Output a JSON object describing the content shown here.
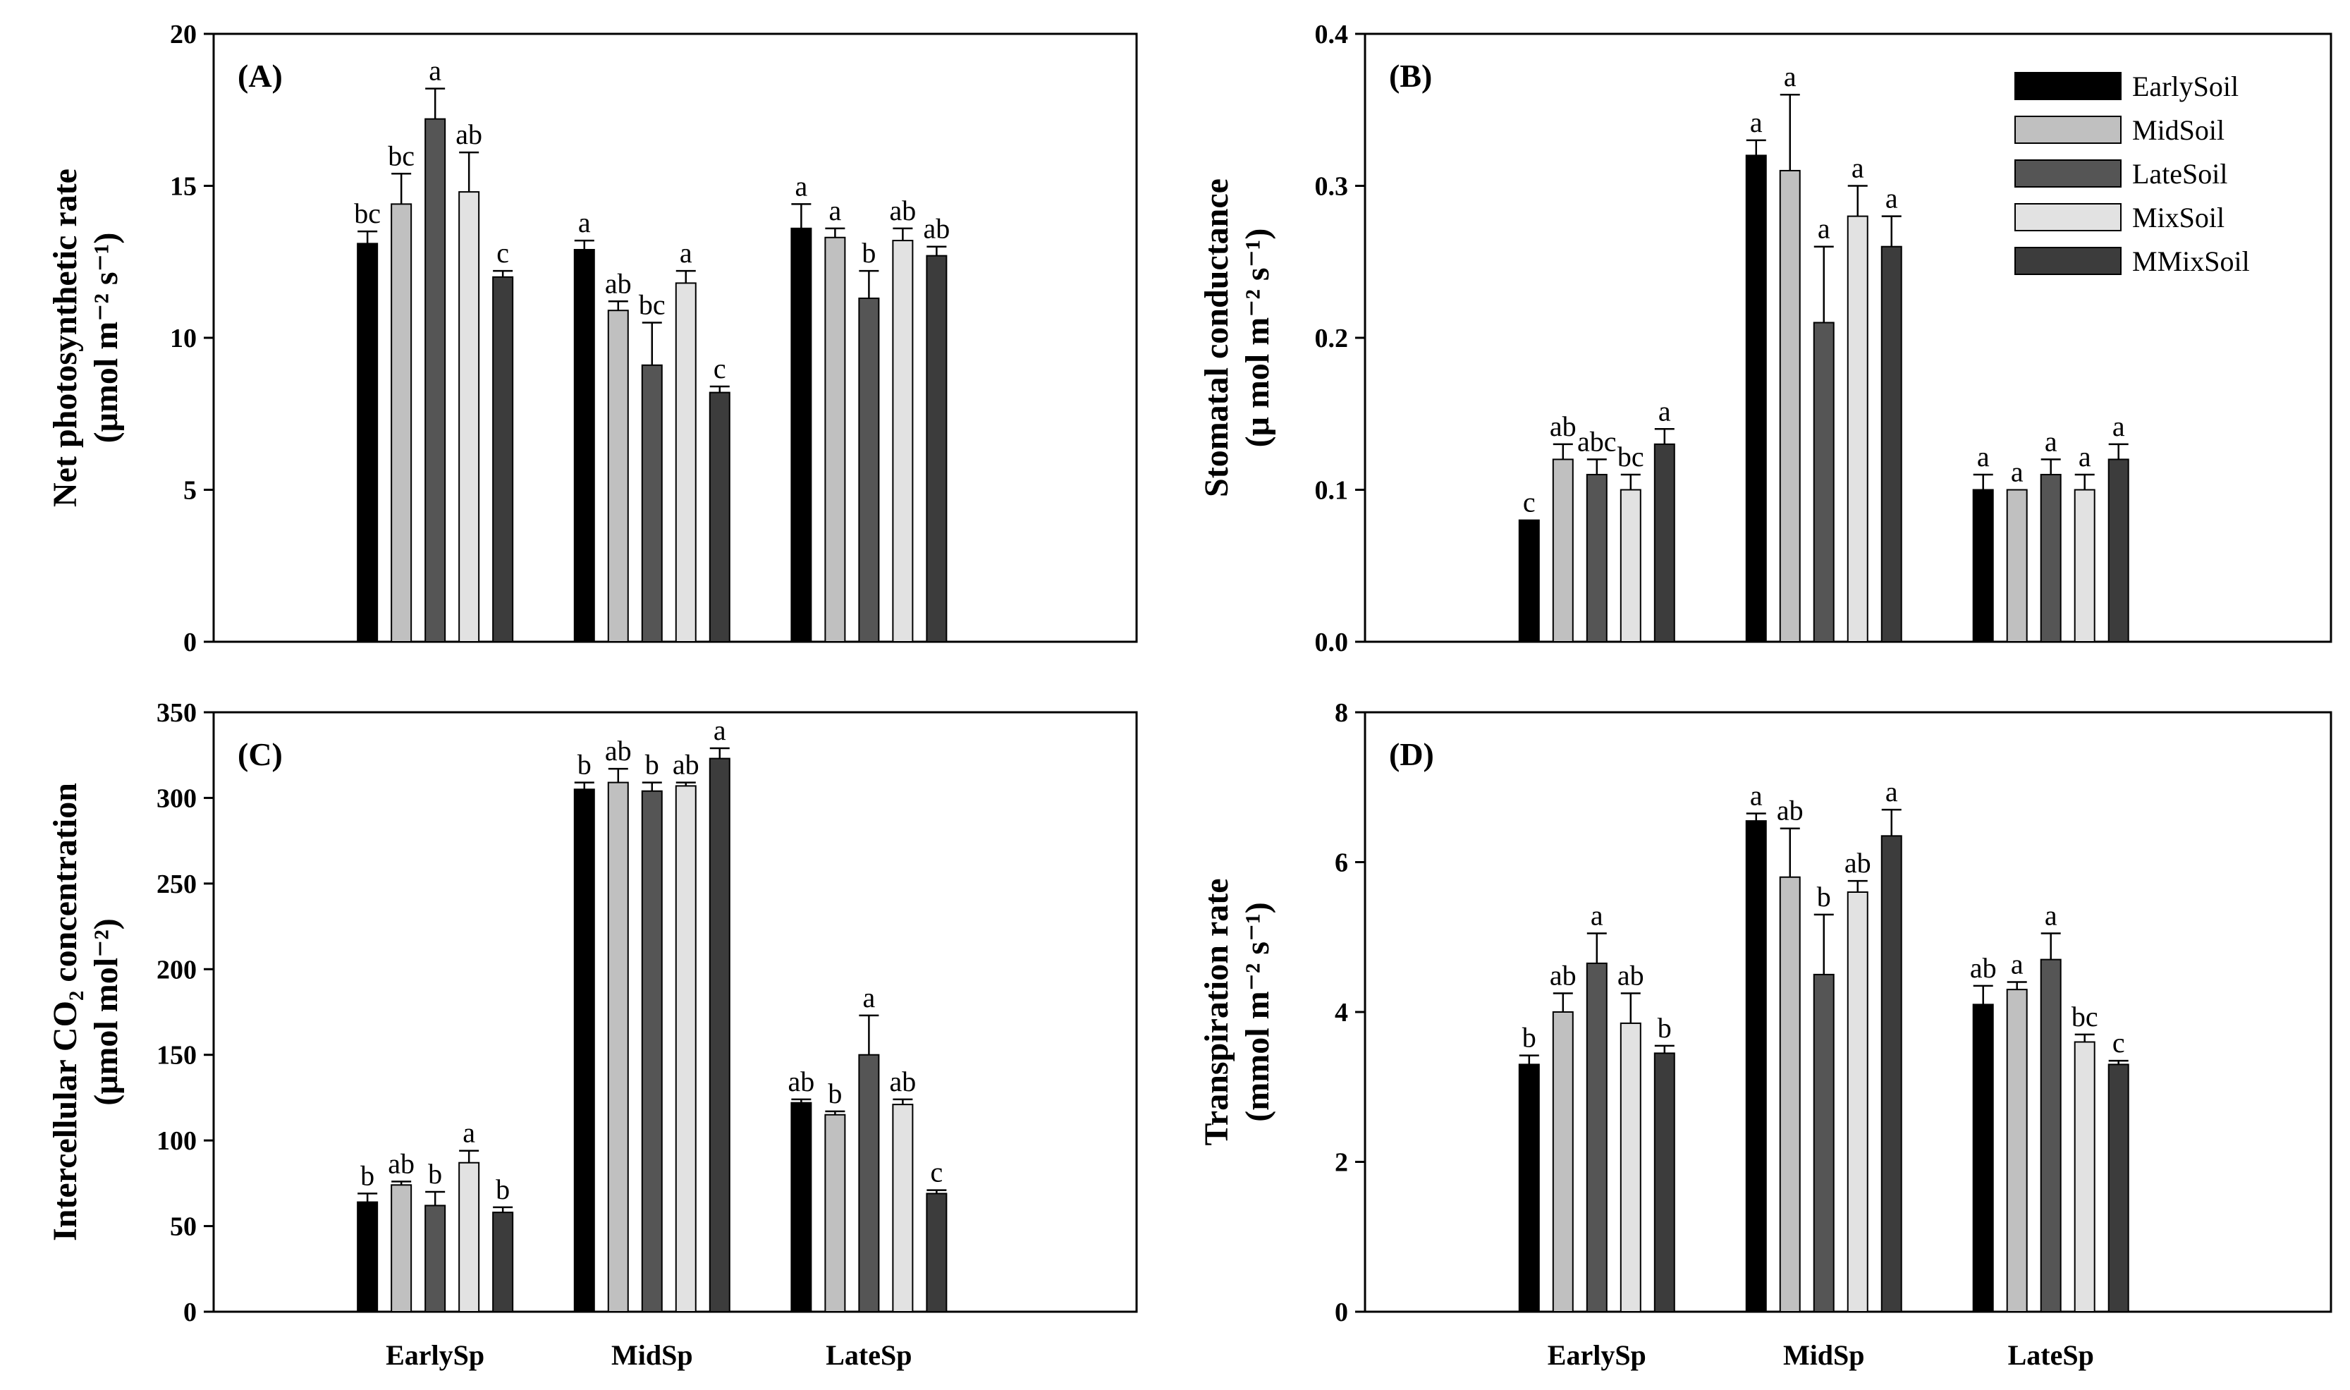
{
  "legend": {
    "position": "top-right of panel B",
    "entries": [
      {
        "name": "EarlySoil",
        "color": "#000000"
      },
      {
        "name": "MidSoil",
        "color": "#c0c0c0"
      },
      {
        "name": "LateSoil",
        "color": "#555555"
      },
      {
        "name": "MixSoil",
        "color": "#e2e2e2"
      },
      {
        "name": "MMixSoil",
        "color": "#3c3c3c"
      }
    ]
  },
  "chart_data": [
    {
      "type": "bar",
      "panel_label": "(A)",
      "ylabel_line1": "Net photosynthetic rate",
      "ylabel_line2": "(μmol m⁻² s⁻¹)",
      "categories": [
        "EarlySp",
        "MidSp",
        "LateSp"
      ],
      "show_categories": false,
      "ylim": [
        0,
        20
      ],
      "yticks": [
        0,
        5,
        10,
        15,
        20
      ],
      "ytick_decimals": 0,
      "series": [
        {
          "name": "EarlySoil",
          "values": [
            13.1,
            12.9,
            13.6
          ],
          "errors": [
            0.4,
            0.3,
            0.8
          ],
          "letters": [
            "bc",
            "a",
            "a"
          ]
        },
        {
          "name": "MidSoil",
          "values": [
            14.4,
            10.9,
            13.3
          ],
          "errors": [
            1.0,
            0.3,
            0.3
          ],
          "letters": [
            "bc",
            "ab",
            "a"
          ]
        },
        {
          "name": "LateSoil",
          "values": [
            17.2,
            9.1,
            11.3
          ],
          "errors": [
            1.0,
            1.4,
            0.9
          ],
          "letters": [
            "a",
            "bc",
            "b"
          ]
        },
        {
          "name": "MixSoil",
          "values": [
            14.8,
            11.8,
            13.2
          ],
          "errors": [
            1.3,
            0.4,
            0.4
          ],
          "letters": [
            "ab",
            "a",
            "ab"
          ]
        },
        {
          "name": "MMixSoil",
          "values": [
            12.0,
            8.2,
            12.7
          ],
          "errors": [
            0.2,
            0.2,
            0.3
          ],
          "letters": [
            "c",
            "c",
            "ab"
          ]
        }
      ]
    },
    {
      "type": "bar",
      "panel_label": "(B)",
      "ylabel_line1": "Stomatal conductance",
      "ylabel_line2": "(μ mol m⁻² s⁻¹)",
      "categories": [
        "EarlySp",
        "MidSp",
        "LateSp"
      ],
      "show_categories": false,
      "ylim": [
        0,
        0.4
      ],
      "yticks": [
        0.0,
        0.1,
        0.2,
        0.3,
        0.4
      ],
      "ytick_decimals": 1,
      "series": [
        {
          "name": "EarlySoil",
          "values": [
            0.08,
            0.32,
            0.1
          ],
          "errors": [
            0,
            0.01,
            0.01
          ],
          "letters": [
            "c",
            "a",
            "a"
          ]
        },
        {
          "name": "MidSoil",
          "values": [
            0.12,
            0.31,
            0.1
          ],
          "errors": [
            0.01,
            0.05,
            0
          ],
          "letters": [
            "ab",
            "a",
            "a"
          ]
        },
        {
          "name": "LateSoil",
          "values": [
            0.11,
            0.21,
            0.11
          ],
          "errors": [
            0.01,
            0.05,
            0.01
          ],
          "letters": [
            "abc",
            "a",
            "a"
          ]
        },
        {
          "name": "MixSoil",
          "values": [
            0.1,
            0.28,
            0.1
          ],
          "errors": [
            0.01,
            0.02,
            0.01
          ],
          "letters": [
            "bc",
            "a",
            "a"
          ]
        },
        {
          "name": "MMixSoil",
          "values": [
            0.13,
            0.26,
            0.12
          ],
          "errors": [
            0.01,
            0.02,
            0.01
          ],
          "letters": [
            "a",
            "a",
            "a"
          ]
        }
      ]
    },
    {
      "type": "bar",
      "panel_label": "(C)",
      "ylabel_line1": "Intercellular CO₂ concentration",
      "ylabel_line2": "(μmol mol⁻²)",
      "categories": [
        "EarlySp",
        "MidSp",
        "LateSp"
      ],
      "show_categories": true,
      "ylim": [
        0,
        350
      ],
      "yticks": [
        0,
        50,
        100,
        150,
        200,
        250,
        300,
        350
      ],
      "ytick_decimals": 0,
      "series": [
        {
          "name": "EarlySoil",
          "values": [
            64,
            305,
            122
          ],
          "errors": [
            5,
            4,
            2
          ],
          "letters": [
            "b",
            "b",
            "ab"
          ]
        },
        {
          "name": "MidSoil",
          "values": [
            74,
            309,
            115
          ],
          "errors": [
            2,
            8,
            2
          ],
          "letters": [
            "ab",
            "ab",
            "b"
          ]
        },
        {
          "name": "LateSoil",
          "values": [
            62,
            304,
            150
          ],
          "errors": [
            8,
            5,
            23
          ],
          "letters": [
            "b",
            "b",
            "a"
          ]
        },
        {
          "name": "MixSoil",
          "values": [
            87,
            307,
            121
          ],
          "errors": [
            7,
            2,
            3
          ],
          "letters": [
            "a",
            "ab",
            "ab"
          ]
        },
        {
          "name": "MMixSoil",
          "values": [
            58,
            323,
            69
          ],
          "errors": [
            3,
            6,
            2
          ],
          "letters": [
            "b",
            "a",
            "c"
          ]
        }
      ]
    },
    {
      "type": "bar",
      "panel_label": "(D)",
      "ylabel_line1": "Transpiration rate",
      "ylabel_line2": "(mmol m⁻² s⁻¹)",
      "categories": [
        "EarlySp",
        "MidSp",
        "LateSp"
      ],
      "show_categories": true,
      "ylim": [
        0,
        8
      ],
      "yticks": [
        0,
        2,
        4,
        6,
        8
      ],
      "ytick_decimals": 0,
      "series": [
        {
          "name": "EarlySoil",
          "values": [
            3.3,
            6.55,
            4.1
          ],
          "errors": [
            0.12,
            0.1,
            0.25
          ],
          "letters": [
            "b",
            "a",
            "ab"
          ]
        },
        {
          "name": "MidSoil",
          "values": [
            4.0,
            5.8,
            4.3
          ],
          "errors": [
            0.25,
            0.65,
            0.1
          ],
          "letters": [
            "ab",
            "ab",
            "a"
          ]
        },
        {
          "name": "LateSoil",
          "values": [
            4.65,
            4.5,
            4.7
          ],
          "errors": [
            0.4,
            0.8,
            0.35
          ],
          "letters": [
            "a",
            "b",
            "a"
          ]
        },
        {
          "name": "MixSoil",
          "values": [
            3.85,
            5.6,
            3.6
          ],
          "errors": [
            0.4,
            0.15,
            0.1
          ],
          "letters": [
            "ab",
            "ab",
            "bc"
          ]
        },
        {
          "name": "MMixSoil",
          "values": [
            3.45,
            6.35,
            3.3
          ],
          "errors": [
            0.1,
            0.35,
            0.05
          ],
          "letters": [
            "b",
            "a",
            "c"
          ]
        }
      ]
    }
  ]
}
